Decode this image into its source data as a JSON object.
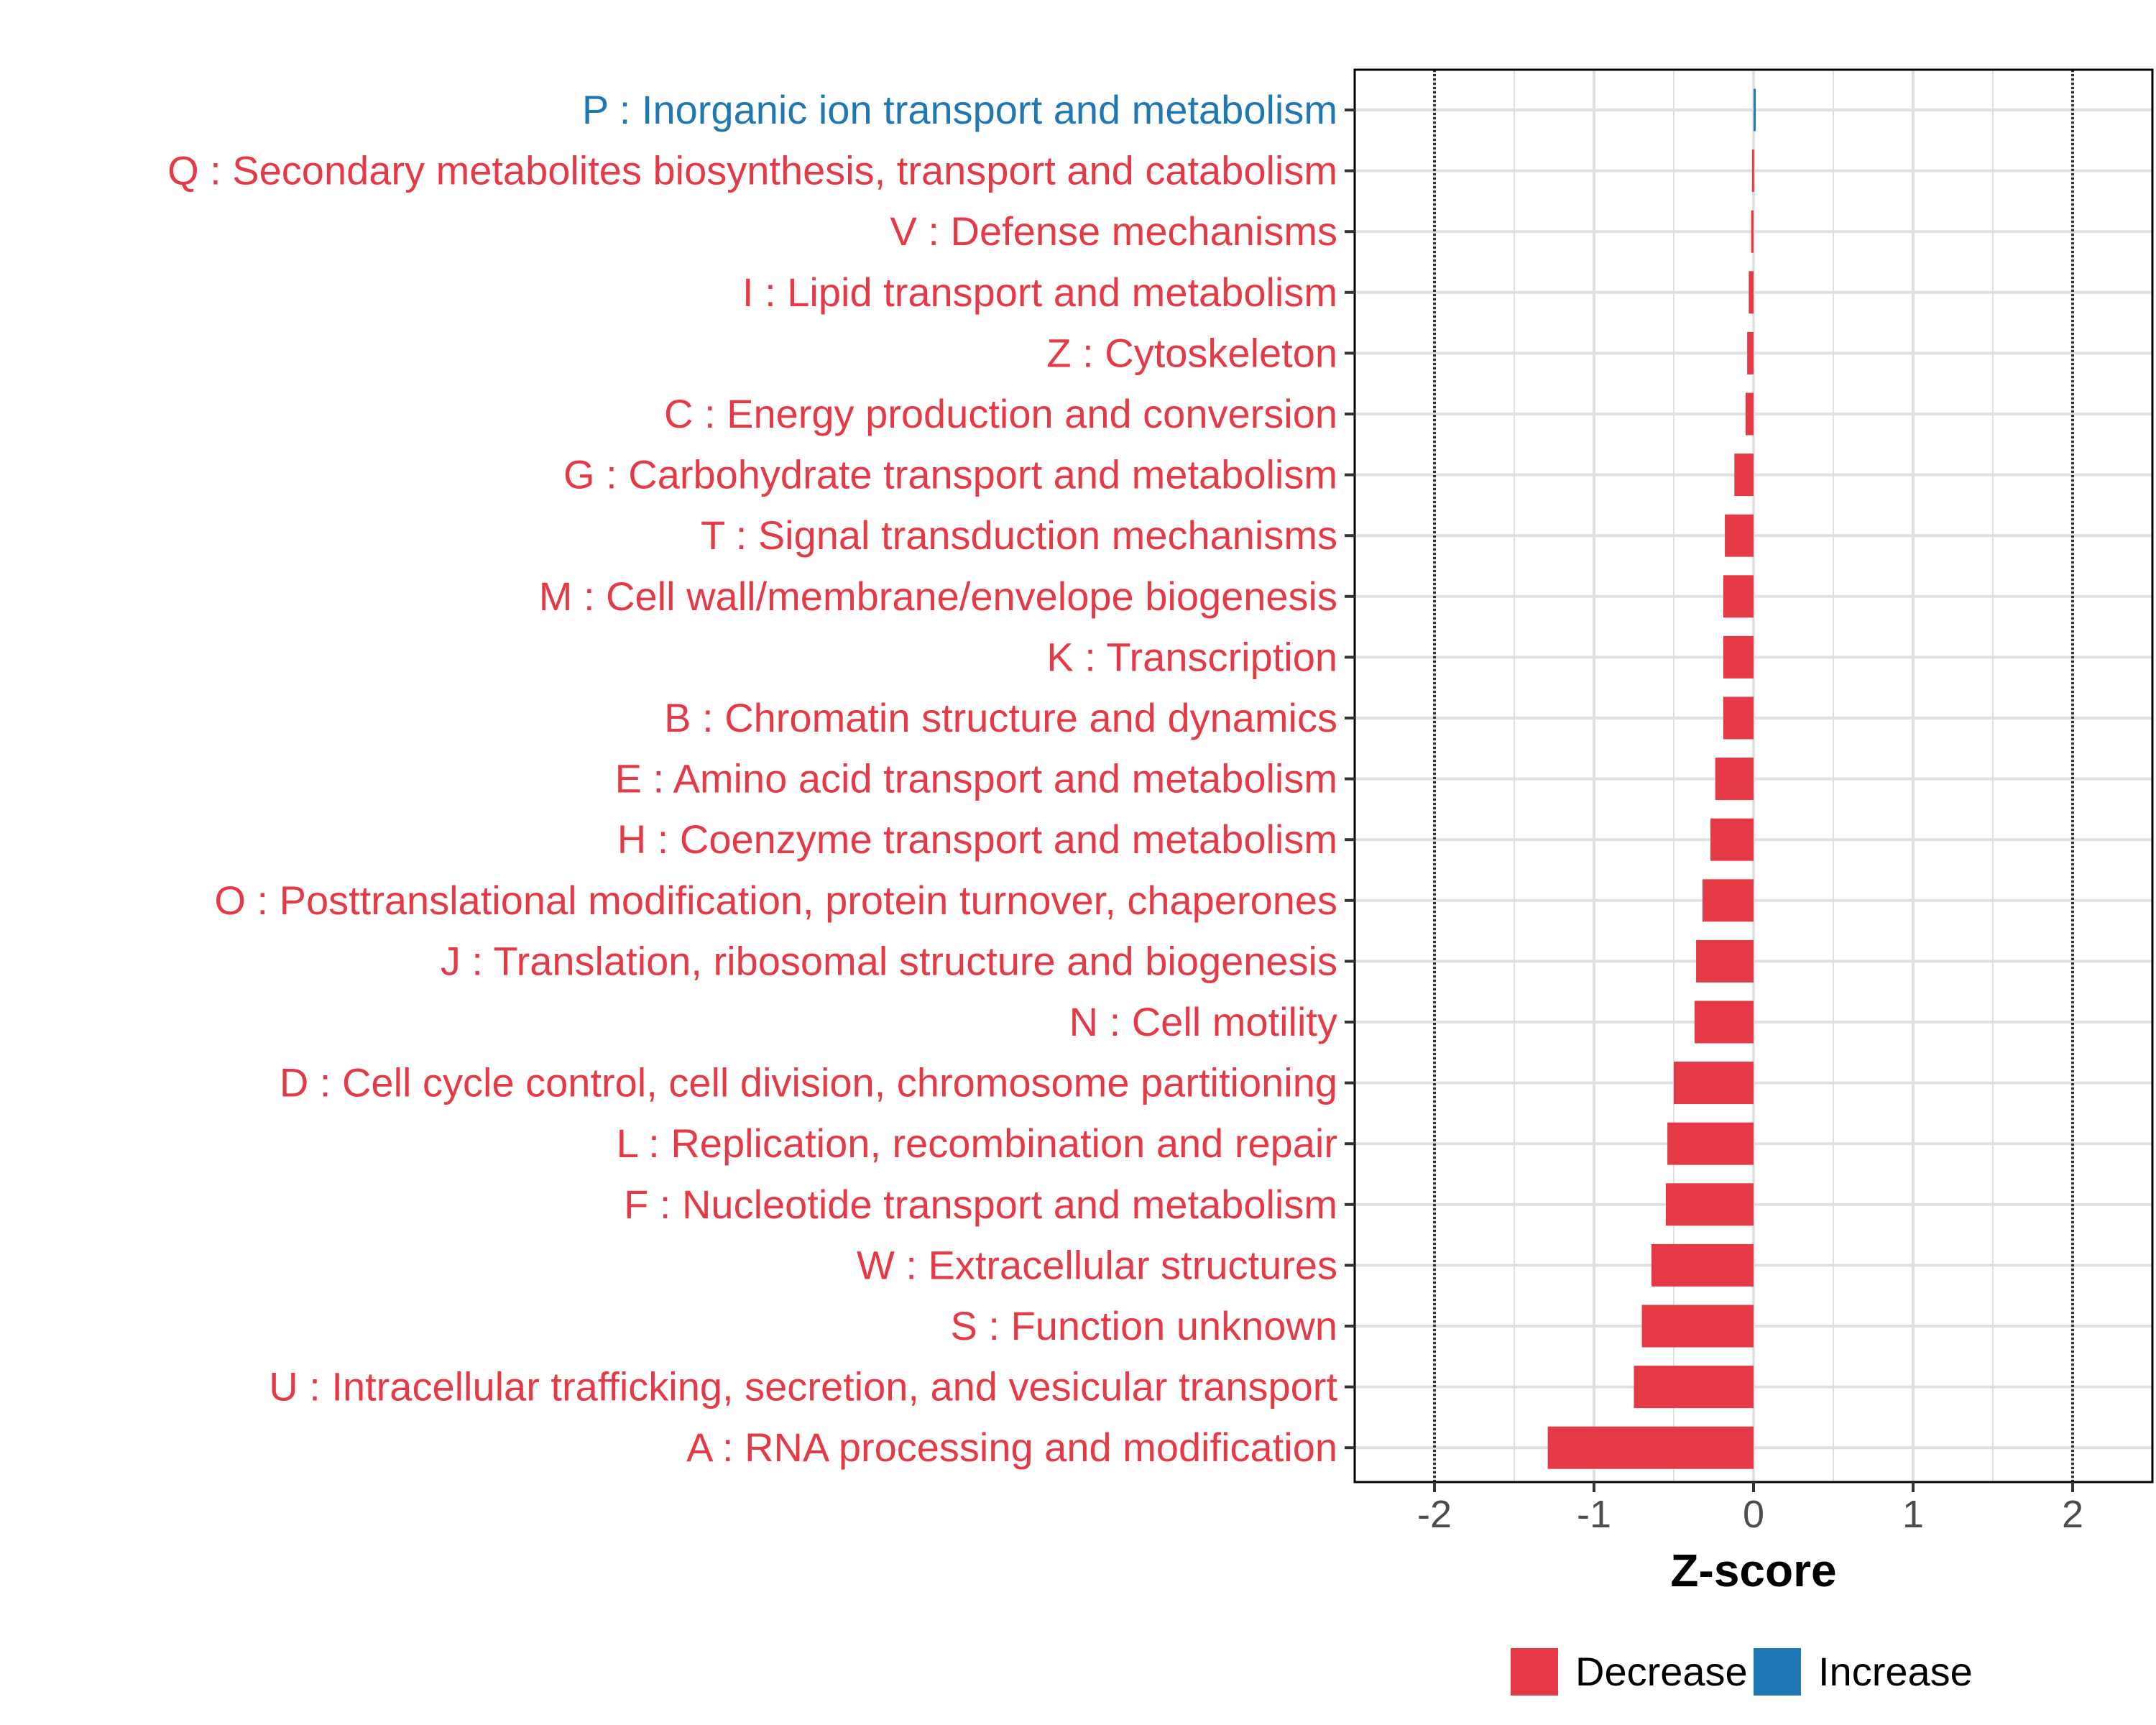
{
  "chart_data": {
    "type": "bar",
    "orientation": "horizontal",
    "title": "",
    "xlabel": "Z-score",
    "ylabel": "",
    "xlim": [
      -2.5,
      2.5
    ],
    "xticks": [
      -2,
      -1,
      0,
      1,
      2
    ],
    "xtick_labels": [
      "-2",
      "-1",
      "0",
      "1",
      "2"
    ],
    "reference_lines": [
      -2,
      2
    ],
    "grid": true,
    "colors": {
      "Decrease": "#e63946",
      "Increase": "#1f78b4"
    },
    "categories": [
      "P : Inorganic ion transport and metabolism",
      "Q : Secondary metabolites biosynthesis, transport and catabolism",
      "V : Defense mechanisms",
      "I : Lipid transport and metabolism",
      "Z : Cytoskeleton",
      "C : Energy production and conversion",
      "G : Carbohydrate transport and metabolism",
      "T : Signal transduction mechanisms",
      "M : Cell wall/membrane/envelope biogenesis",
      "K : Transcription",
      "B : Chromatin structure and dynamics",
      "E : Amino acid transport and metabolism",
      "H : Coenzyme transport and metabolism",
      "O : Posttranslational modification, protein turnover, chaperones",
      "J : Translation, ribosomal structure and biogenesis",
      "N : Cell motility",
      "D : Cell cycle control, cell division, chromosome partitioning",
      "L : Replication, recombination and repair",
      "F : Nucleotide transport and metabolism",
      "W : Extracellular structures",
      "S : Function unknown",
      "U : Intracellular trafficking, secretion, and vesicular transport",
      "A : RNA processing and modification"
    ],
    "values": [
      0.01,
      -0.01,
      -0.015,
      -0.03,
      -0.04,
      -0.05,
      -0.12,
      -0.18,
      -0.19,
      -0.19,
      -0.19,
      -0.24,
      -0.27,
      -0.32,
      -0.36,
      -0.37,
      -0.5,
      -0.54,
      -0.55,
      -0.64,
      -0.7,
      -0.75,
      -1.29
    ],
    "groups": [
      "Increase",
      "Decrease",
      "Decrease",
      "Decrease",
      "Decrease",
      "Decrease",
      "Decrease",
      "Decrease",
      "Decrease",
      "Decrease",
      "Decrease",
      "Decrease",
      "Decrease",
      "Decrease",
      "Decrease",
      "Decrease",
      "Decrease",
      "Decrease",
      "Decrease",
      "Decrease",
      "Decrease",
      "Decrease",
      "Decrease"
    ],
    "legend": {
      "position": "bottom",
      "entries": [
        "Decrease",
        "Increase"
      ]
    }
  }
}
